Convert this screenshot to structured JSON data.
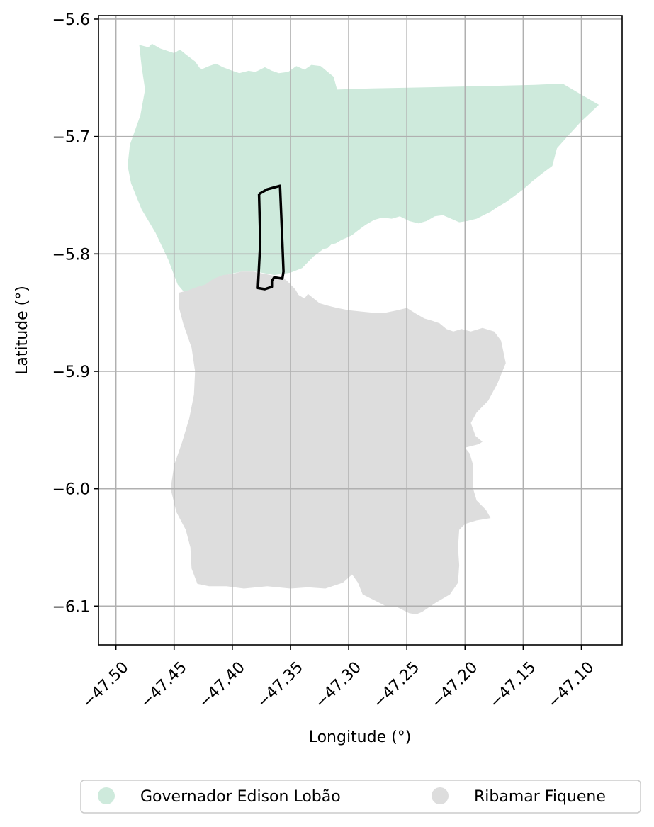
{
  "map": {
    "xlabel": "Longitude (°)",
    "ylabel": "Latitude (°)",
    "xlim": [
      -47.515,
      -47.065
    ],
    "ylim": [
      -6.133,
      -5.597
    ],
    "xticks": [
      -47.5,
      -47.45,
      -47.4,
      -47.35,
      -47.3,
      -47.25,
      -47.2,
      -47.15,
      -47.1
    ],
    "xtick_labels": [
      "−47.50",
      "−47.45",
      "−47.40",
      "−47.35",
      "−47.30",
      "−47.25",
      "−47.20",
      "−47.15",
      "−47.10"
    ],
    "yticks": [
      -5.6,
      -5.7,
      -5.8,
      -5.9,
      -6.0,
      -6.1
    ],
    "ytick_labels": [
      "−5.6",
      "−5.7",
      "−5.8",
      "−5.9",
      "−6.0",
      "−6.1"
    ],
    "grid": true,
    "legend_position": "bottom-outside",
    "regions": [
      {
        "name": "Governador Edison Lobão",
        "color": "#ceeadc",
        "coords": [
          [
            -47.48,
            -5.622
          ],
          [
            -47.472,
            -5.624
          ],
          [
            -47.469,
            -5.621
          ],
          [
            -47.462,
            -5.625
          ],
          [
            -47.456,
            -5.627
          ],
          [
            -47.45,
            -5.629
          ],
          [
            -47.445,
            -5.626
          ],
          [
            -47.44,
            -5.63
          ],
          [
            -47.432,
            -5.636
          ],
          [
            -47.427,
            -5.643
          ],
          [
            -47.42,
            -5.64
          ],
          [
            -47.414,
            -5.638
          ],
          [
            -47.408,
            -5.641
          ],
          [
            -47.4,
            -5.644
          ],
          [
            -47.394,
            -5.646
          ],
          [
            -47.386,
            -5.644
          ],
          [
            -47.38,
            -5.645
          ],
          [
            -47.372,
            -5.641
          ],
          [
            -47.366,
            -5.644
          ],
          [
            -47.36,
            -5.646
          ],
          [
            -47.352,
            -5.645
          ],
          [
            -47.345,
            -5.64
          ],
          [
            -47.338,
            -5.643
          ],
          [
            -47.332,
            -5.639
          ],
          [
            -47.324,
            -5.64
          ],
          [
            -47.318,
            -5.645
          ],
          [
            -47.313,
            -5.649
          ],
          [
            -47.31,
            -5.66
          ],
          [
            -47.28,
            -5.659
          ],
          [
            -47.23,
            -5.658
          ],
          [
            -47.18,
            -5.657
          ],
          [
            -47.14,
            -5.656
          ],
          [
            -47.116,
            -5.655
          ],
          [
            -47.104,
            -5.662
          ],
          [
            -47.085,
            -5.673
          ],
          [
            -47.1,
            -5.687
          ],
          [
            -47.112,
            -5.7
          ],
          [
            -47.121,
            -5.71
          ],
          [
            -47.125,
            -5.725
          ],
          [
            -47.133,
            -5.731
          ],
          [
            -47.142,
            -5.738
          ],
          [
            -47.15,
            -5.745
          ],
          [
            -47.158,
            -5.751
          ],
          [
            -47.165,
            -5.756
          ],
          [
            -47.172,
            -5.76
          ],
          [
            -47.178,
            -5.764
          ],
          [
            -47.184,
            -5.767
          ],
          [
            -47.19,
            -5.77
          ],
          [
            -47.198,
            -5.772
          ],
          [
            -47.205,
            -5.773
          ],
          [
            -47.212,
            -5.77
          ],
          [
            -47.219,
            -5.767
          ],
          [
            -47.226,
            -5.768
          ],
          [
            -47.233,
            -5.772
          ],
          [
            -47.24,
            -5.774
          ],
          [
            -47.248,
            -5.772
          ],
          [
            -47.256,
            -5.768
          ],
          [
            -47.263,
            -5.77
          ],
          [
            -47.271,
            -5.769
          ],
          [
            -47.278,
            -5.771
          ],
          [
            -47.285,
            -5.775
          ],
          [
            -47.292,
            -5.78
          ],
          [
            -47.297,
            -5.784
          ],
          [
            -47.301,
            -5.786
          ],
          [
            -47.306,
            -5.788
          ],
          [
            -47.311,
            -5.791
          ],
          [
            -47.315,
            -5.792
          ],
          [
            -47.318,
            -5.795
          ],
          [
            -47.322,
            -5.796
          ],
          [
            -47.326,
            -5.799
          ],
          [
            -47.33,
            -5.802
          ],
          [
            -47.34,
            -5.812
          ],
          [
            -47.35,
            -5.816
          ],
          [
            -47.364,
            -5.818
          ],
          [
            -47.38,
            -5.815
          ],
          [
            -47.392,
            -5.815
          ],
          [
            -47.402,
            -5.817
          ],
          [
            -47.41,
            -5.82
          ],
          [
            -47.418,
            -5.825
          ],
          [
            -47.425,
            -5.828
          ],
          [
            -47.433,
            -5.831
          ],
          [
            -47.441,
            -5.833
          ],
          [
            -47.447,
            -5.826
          ],
          [
            -47.455,
            -5.805
          ],
          [
            -47.466,
            -5.782
          ],
          [
            -47.478,
            -5.762
          ],
          [
            -47.487,
            -5.74
          ],
          [
            -47.49,
            -5.725
          ],
          [
            -47.488,
            -5.707
          ],
          [
            -47.479,
            -5.682
          ],
          [
            -47.475,
            -5.66
          ],
          [
            -47.478,
            -5.64
          ],
          [
            -47.48,
            -5.622
          ]
        ]
      },
      {
        "name": "Ribamar Fiquene",
        "color": "#dddddd",
        "coords": [
          [
            -47.446,
            -5.833
          ],
          [
            -47.438,
            -5.831
          ],
          [
            -47.43,
            -5.828
          ],
          [
            -47.423,
            -5.826
          ],
          [
            -47.416,
            -5.821
          ],
          [
            -47.408,
            -5.818
          ],
          [
            -47.4,
            -5.817
          ],
          [
            -47.392,
            -5.815
          ],
          [
            -47.382,
            -5.815
          ],
          [
            -47.372,
            -5.817
          ],
          [
            -47.362,
            -5.819
          ],
          [
            -47.354,
            -5.822
          ],
          [
            -47.35,
            -5.826
          ],
          [
            -47.346,
            -5.83
          ],
          [
            -47.343,
            -5.835
          ],
          [
            -47.338,
            -5.838
          ],
          [
            -47.335,
            -5.834
          ],
          [
            -47.33,
            -5.838
          ],
          [
            -47.325,
            -5.842
          ],
          [
            -47.318,
            -5.844
          ],
          [
            -47.31,
            -5.846
          ],
          [
            -47.3,
            -5.848
          ],
          [
            -47.29,
            -5.849
          ],
          [
            -47.28,
            -5.85
          ],
          [
            -47.268,
            -5.85
          ],
          [
            -47.258,
            -5.848
          ],
          [
            -47.25,
            -5.846
          ],
          [
            -47.242,
            -5.851
          ],
          [
            -47.235,
            -5.855
          ],
          [
            -47.228,
            -5.857
          ],
          [
            -47.222,
            -5.859
          ],
          [
            -47.216,
            -5.864
          ],
          [
            -47.21,
            -5.866
          ],
          [
            -47.203,
            -5.864
          ],
          [
            -47.195,
            -5.866
          ],
          [
            -47.185,
            -5.863
          ],
          [
            -47.175,
            -5.866
          ],
          [
            -47.169,
            -5.874
          ],
          [
            -47.165,
            -5.893
          ],
          [
            -47.172,
            -5.91
          ],
          [
            -47.18,
            -5.925
          ],
          [
            -47.19,
            -5.935
          ],
          [
            -47.195,
            -5.944
          ],
          [
            -47.191,
            -5.955
          ],
          [
            -47.185,
            -5.96
          ],
          [
            -47.188,
            -5.962
          ],
          [
            -47.2,
            -5.965
          ],
          [
            -47.196,
            -5.97
          ],
          [
            -47.193,
            -5.98
          ],
          [
            -47.193,
            -6.0
          ],
          [
            -47.19,
            -6.01
          ],
          [
            -47.182,
            -6.018
          ],
          [
            -47.178,
            -6.025
          ],
          [
            -47.19,
            -6.027
          ],
          [
            -47.2,
            -6.03
          ],
          [
            -47.205,
            -6.035
          ],
          [
            -47.206,
            -6.05
          ],
          [
            -47.205,
            -6.065
          ],
          [
            -47.206,
            -6.08
          ],
          [
            -47.213,
            -6.09
          ],
          [
            -47.225,
            -6.097
          ],
          [
            -47.237,
            -6.105
          ],
          [
            -47.242,
            -6.107
          ],
          [
            -47.248,
            -6.106
          ],
          [
            -47.258,
            -6.101
          ],
          [
            -47.268,
            -6.1
          ],
          [
            -47.278,
            -6.095
          ],
          [
            -47.288,
            -6.09
          ],
          [
            -47.292,
            -6.08
          ],
          [
            -47.297,
            -6.073
          ],
          [
            -47.305,
            -6.08
          ],
          [
            -47.32,
            -6.085
          ],
          [
            -47.335,
            -6.084
          ],
          [
            -47.35,
            -6.085
          ],
          [
            -47.37,
            -6.083
          ],
          [
            -47.39,
            -6.085
          ],
          [
            -47.405,
            -6.083
          ],
          [
            -47.42,
            -6.083
          ],
          [
            -47.43,
            -6.081
          ],
          [
            -47.435,
            -6.068
          ],
          [
            -47.436,
            -6.05
          ],
          [
            -47.44,
            -6.035
          ],
          [
            -47.448,
            -6.02
          ],
          [
            -47.453,
            -6.0
          ],
          [
            -47.45,
            -5.98
          ],
          [
            -47.443,
            -5.96
          ],
          [
            -47.437,
            -5.94
          ],
          [
            -47.433,
            -5.92
          ],
          [
            -47.432,
            -5.9
          ],
          [
            -47.435,
            -5.88
          ],
          [
            -47.442,
            -5.86
          ],
          [
            -47.446,
            -5.845
          ],
          [
            -47.446,
            -5.833
          ]
        ]
      }
    ],
    "outline": {
      "color": "#000000",
      "coords": [
        [
          -47.377,
          -5.749
        ],
        [
          -47.37,
          -5.745
        ],
        [
          -47.359,
          -5.742
        ],
        [
          -47.357,
          -5.79
        ],
        [
          -47.356,
          -5.815
        ],
        [
          -47.357,
          -5.821
        ],
        [
          -47.364,
          -5.82
        ],
        [
          -47.366,
          -5.823
        ],
        [
          -47.366,
          -5.828
        ],
        [
          -47.372,
          -5.83
        ],
        [
          -47.378,
          -5.829
        ],
        [
          -47.376,
          -5.79
        ],
        [
          -47.377,
          -5.749
        ]
      ]
    },
    "legend": [
      {
        "label": "Governador Edison Lobão",
        "color": "#ceeadc"
      },
      {
        "label": "Ribamar Fiquene",
        "color": "#dddddd"
      }
    ]
  }
}
